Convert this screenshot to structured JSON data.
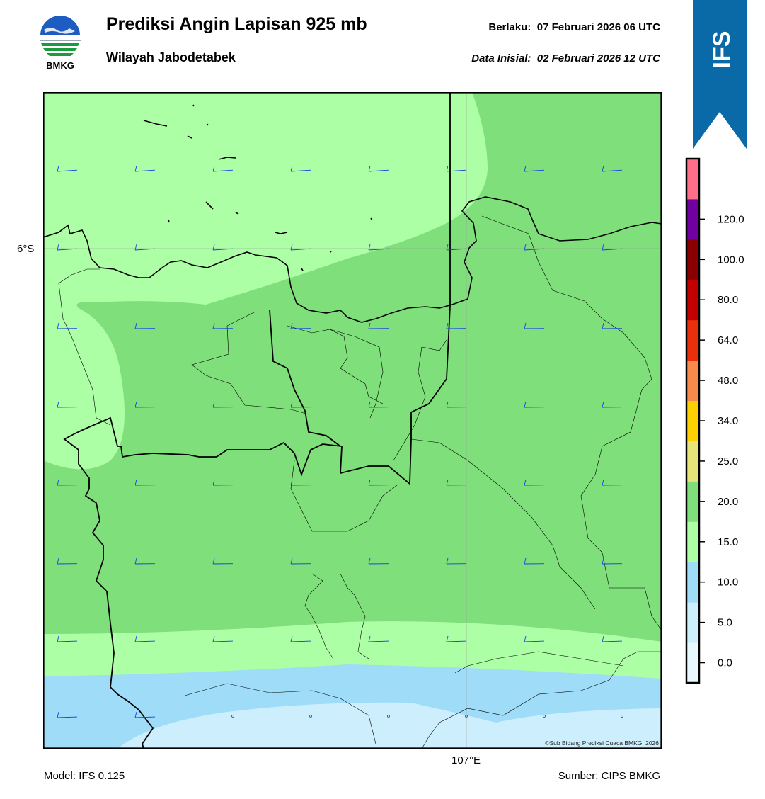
{
  "header": {
    "title": "Prediksi Angin Lapisan 925 mb",
    "subtitle": "Wilayah Jabodetabek",
    "valid_label": "Berlaku:",
    "valid_value": "07 Februari 2026 06 UTC",
    "init_label": "Data Inisial:",
    "init_value": "02 Februari 2026 12 UTC"
  },
  "logo": {
    "text": "BMKG"
  },
  "ribbon": {
    "text": "IFS",
    "color": "#0a6aa8"
  },
  "map": {
    "lat_label": "6°S",
    "lon_label": "107°E",
    "copyright": "©Sub Bidang Prediksi Cuaca BMKG, 2026"
  },
  "footer": {
    "model": "Model: IFS 0.125",
    "source": "Sumber: CIPS BMKG"
  },
  "colorbar": {
    "ticks": [
      "0.0",
      "5.0",
      "10.0",
      "15.0",
      "20.0",
      "25.0",
      "34.0",
      "48.0",
      "64.0",
      "80.0",
      "100.0",
      "120.0"
    ],
    "colors": [
      "#e8f8ff",
      "#cdeefc",
      "#9edcf8",
      "#adffa6",
      "#7fdf7b",
      "#e7e47a",
      "#fdd000",
      "#f88a4c",
      "#ea2f0d",
      "#c30000",
      "#8a0000",
      "#7000a0",
      "#ff6f8a"
    ]
  },
  "wind_speed_colors": {
    "very_light": "#cdeefc",
    "light": "#9edcf8",
    "moderate": "#adffa6",
    "fresh": "#7fdf7b",
    "barb": "#1a3fe6"
  }
}
